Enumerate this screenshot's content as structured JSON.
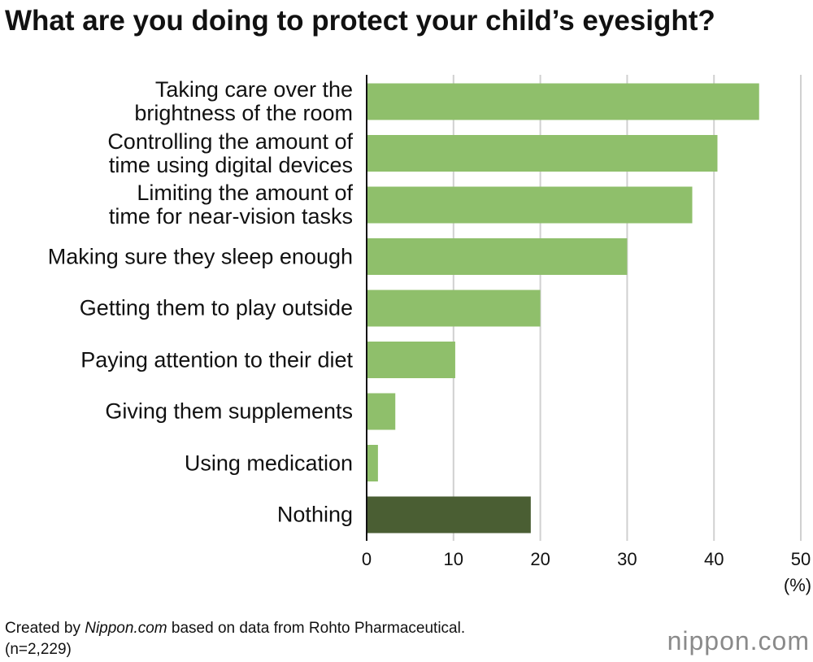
{
  "chart_data": {
    "type": "bar",
    "orientation": "horizontal",
    "title": "What are you doing to protect your child’s eyesight?",
    "categories": [
      "Taking care over the\nbrightness of the room",
      "Controlling the amount of\ntime using digital devices",
      "Limiting the amount of\ntime for near-vision tasks",
      "Making sure they sleep enough",
      "Getting them to play outside",
      "Paying attention to their diet",
      "Giving them supplements",
      "Using medication",
      "Nothing"
    ],
    "values": [
      45.2,
      40.4,
      37.5,
      30.0,
      20.0,
      10.2,
      3.3,
      1.3,
      18.9
    ],
    "colors": [
      "#8fbf6b",
      "#8fbf6b",
      "#8fbf6b",
      "#8fbf6b",
      "#8fbf6b",
      "#8fbf6b",
      "#8fbf6b",
      "#8fbf6b",
      "#4a5e33"
    ],
    "xlim": [
      0,
      50
    ],
    "xticks": [
      0,
      10,
      20,
      30,
      40,
      50
    ],
    "x_unit": "(%)",
    "grid": true,
    "source": [
      "Created by ",
      "Nippon.com",
      " based on data from Rohto Pharmaceutical."
    ],
    "note": "(n=2,229)",
    "logo": "nippon.com"
  }
}
